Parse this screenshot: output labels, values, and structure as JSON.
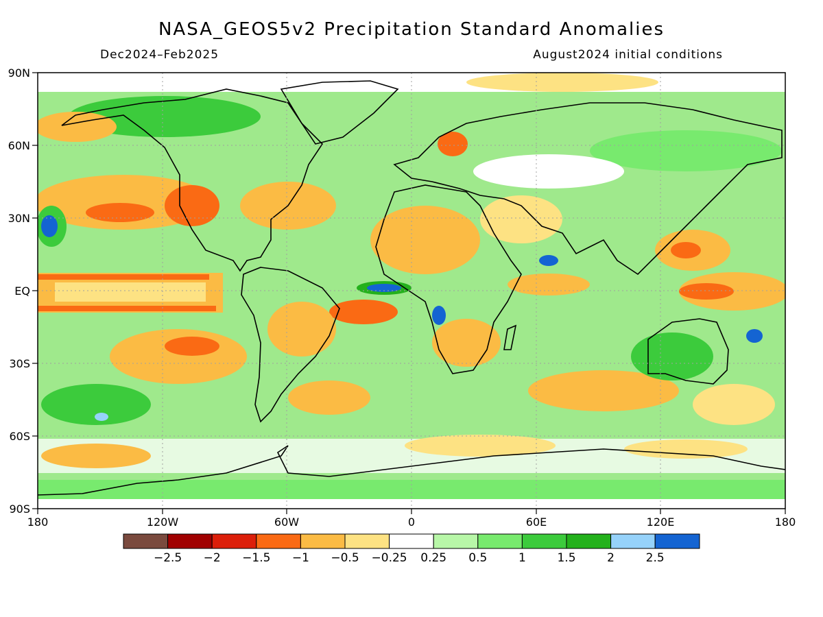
{
  "title": "NASA_GEOS5v2 Precipitation Standard Anomalies",
  "subtitle_left": "Dec2024–Feb2025",
  "subtitle_right": "August2024 initial conditions",
  "lat_ticks": [
    "90N",
    "60N",
    "30N",
    "EQ",
    "30S",
    "60S",
    "90S"
  ],
  "lon_ticks": [
    "180",
    "120W",
    "60W",
    "0",
    "60E",
    "120E",
    "180"
  ],
  "colorbar": {
    "colors": [
      "#7a4a3e",
      "#a00000",
      "#dc1f0a",
      "#fa6a14",
      "#fbbb44",
      "#fde283",
      "#ffffff",
      "#b8f7a8",
      "#78ea6e",
      "#3ccb3c",
      "#24b11c",
      "#96d2fa",
      "#1464d2"
    ],
    "labels": [
      "−2.5",
      "−2",
      "−1.5",
      "−1",
      "−0.5",
      "−0.25",
      "0.25",
      "0.5",
      "1",
      "1.5",
      "2",
      "2.5"
    ]
  },
  "colors": {
    "frame": "#000000",
    "grid": "#a0a0a0",
    "coast": "#000000"
  }
}
